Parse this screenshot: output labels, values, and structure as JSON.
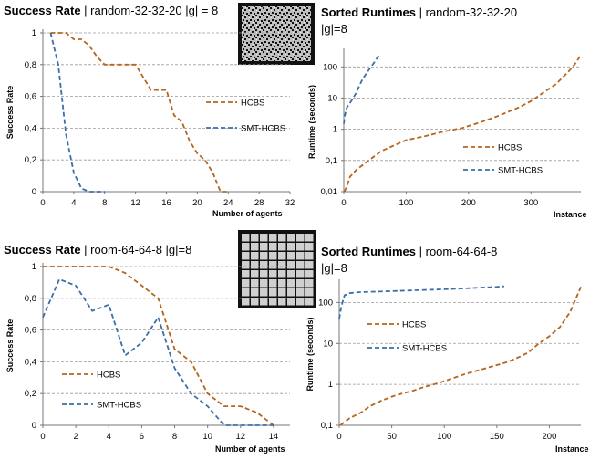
{
  "chart_data": [
    {
      "type": "line",
      "title_bold": "Success Rate",
      "title_rest": " | random-32-32-20 |g| = 8",
      "xlabel": "Number of agents",
      "ylabel": "Success Rate",
      "xlim": [
        0,
        32
      ],
      "ylim": [
        0,
        1
      ],
      "xticks": [
        "0",
        "4",
        "8",
        "12",
        "16",
        "20",
        "24",
        "28",
        "32"
      ],
      "yticks": [
        "0",
        "0,2",
        "0,4",
        "0,6",
        "0,8",
        "1"
      ],
      "legend_position": "right",
      "series": [
        {
          "name": "HCBS",
          "color": "#b5651d",
          "x": [
            1,
            2,
            3,
            4,
            5,
            6,
            7,
            8,
            9,
            10,
            11,
            12,
            13,
            14,
            15,
            16,
            17,
            18,
            19,
            20,
            21,
            22,
            23,
            24
          ],
          "y": [
            1,
            1,
            1,
            0.96,
            0.96,
            0.92,
            0.85,
            0.8,
            0.8,
            0.8,
            0.8,
            0.8,
            0.72,
            0.64,
            0.64,
            0.64,
            0.48,
            0.44,
            0.32,
            0.24,
            0.2,
            0.12,
            0,
            0
          ]
        },
        {
          "name": "SMT-HCBS",
          "color": "#3a6fa8",
          "x": [
            1,
            2,
            3,
            4,
            5,
            6,
            7,
            8
          ],
          "y": [
            1,
            0.8,
            0.36,
            0.12,
            0.02,
            0,
            0,
            0
          ]
        }
      ]
    },
    {
      "type": "line",
      "title_bold": "Sorted Runtimes",
      "title_rest": " | random-32-32-20",
      "title_line2": "|g|=8",
      "xlabel": "Instance",
      "ylabel": "Runtime (seconds)",
      "xlim": [
        0,
        380
      ],
      "ylim": [
        0.01,
        300
      ],
      "log_y": true,
      "xticks": [
        "0",
        "100",
        "200",
        "300"
      ],
      "yticks": [
        "0,01",
        "0,1",
        "1",
        "10",
        "100"
      ],
      "legend_position": "right",
      "series": [
        {
          "name": "HCBS",
          "color": "#b5651d",
          "x": [
            1,
            5,
            10,
            20,
            40,
            60,
            80,
            100,
            130,
            160,
            190,
            220,
            250,
            280,
            300,
            320,
            340,
            360,
            370,
            380
          ],
          "y": [
            0.01,
            0.015,
            0.03,
            0.05,
            0.1,
            0.2,
            0.3,
            0.45,
            0.6,
            0.85,
            1.1,
            1.7,
            2.8,
            5,
            8,
            15,
            28,
            70,
            120,
            240
          ]
        },
        {
          "name": "SMT-HCBS",
          "color": "#3a6fa8",
          "x": [
            0,
            2,
            5,
            10,
            15,
            20,
            25,
            30,
            40,
            50,
            57
          ],
          "y": [
            1.5,
            3,
            5,
            7,
            10,
            15,
            25,
            40,
            80,
            150,
            250
          ]
        }
      ]
    },
    {
      "type": "line",
      "title_bold": "Success Rate",
      "title_rest": " | room-64-64-8 |g|=8",
      "xlabel": "Number of agents",
      "ylabel": "Success Rate",
      "xlim": [
        0,
        15
      ],
      "ylim": [
        0,
        1
      ],
      "xticks": [
        "0",
        "2",
        "4",
        "6",
        "8",
        "10",
        "12",
        "14"
      ],
      "yticks": [
        "0",
        "0,2",
        "0,4",
        "0,6",
        "0,8",
        "1"
      ],
      "legend_position": "bottom-left",
      "series": [
        {
          "name": "HCBS",
          "color": "#b5651d",
          "x": [
            0,
            1,
            2,
            3,
            4,
            5,
            6,
            7,
            8,
            9,
            10,
            11,
            12,
            13,
            14
          ],
          "y": [
            1,
            1,
            1,
            1,
            1,
            0.96,
            0.88,
            0.8,
            0.48,
            0.4,
            0.2,
            0.12,
            0.12,
            0.08,
            0
          ]
        },
        {
          "name": "SMT-HCBS",
          "color": "#3a6fa8",
          "x": [
            0,
            1,
            2,
            3,
            4,
            5,
            6,
            7,
            8,
            9,
            10,
            11,
            12,
            13,
            14
          ],
          "y": [
            0.68,
            0.92,
            0.88,
            0.72,
            0.76,
            0.44,
            0.52,
            0.68,
            0.36,
            0.2,
            0.12,
            0,
            0,
            0,
            0
          ]
        }
      ]
    },
    {
      "type": "line",
      "title_bold": "Sorted Runtimes",
      "title_rest": " | room-64-64-8",
      "title_line2": "|g|=8",
      "xlabel": "Instance",
      "ylabel": "Runtime (seconds)",
      "xlim": [
        0,
        230
      ],
      "ylim": [
        0.1,
        300
      ],
      "log_y": true,
      "xticks": [
        "0",
        "50",
        "100",
        "150",
        "200"
      ],
      "yticks": [
        "0,1",
        "1",
        "10",
        "100"
      ],
      "legend_position": "left",
      "series": [
        {
          "name": "HCBS",
          "color": "#b5651d",
          "x": [
            1,
            5,
            10,
            20,
            30,
            40,
            50,
            60,
            70,
            80,
            90,
            100,
            120,
            140,
            160,
            170,
            180,
            190,
            200,
            210,
            220,
            225,
            230
          ],
          "y": [
            0.1,
            0.12,
            0.15,
            0.2,
            0.3,
            0.4,
            0.5,
            0.6,
            0.7,
            0.85,
            1,
            1.2,
            1.8,
            2.5,
            3.5,
            4.5,
            6,
            10,
            15,
            25,
            60,
            120,
            240
          ]
        },
        {
          "name": "SMT-HCBS",
          "color": "#3a6fa8",
          "x": [
            0,
            2,
            5,
            10,
            20,
            50,
            100,
            150,
            157
          ],
          "y": [
            40,
            80,
            150,
            170,
            180,
            190,
            210,
            240,
            250
          ]
        }
      ]
    }
  ]
}
